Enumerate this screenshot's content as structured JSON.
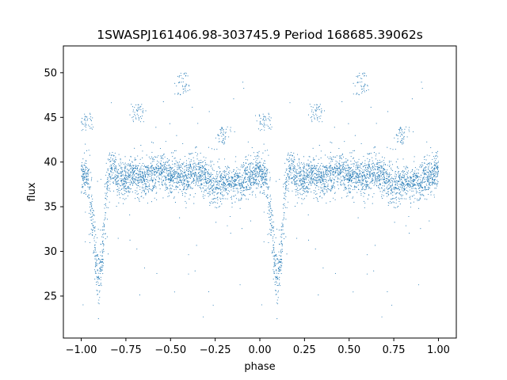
{
  "chart_data": {
    "type": "scatter",
    "title": "1SWASPJ161406.98-303745.9 Period 168685.39062s",
    "xlabel": "phase",
    "ylabel": "flux",
    "xlim": [
      -1.1,
      1.1
    ],
    "ylim": [
      20.3,
      53.0
    ],
    "xticks": [
      -1.0,
      -0.75,
      -0.5,
      -0.25,
      0.0,
      0.25,
      0.5,
      0.75,
      1.0
    ],
    "xtick_labels": [
      "−1.00",
      "−0.75",
      "−0.50",
      "−0.25",
      "0.00",
      "0.25",
      "0.50",
      "0.75",
      "1.00"
    ],
    "yticks": [
      25,
      30,
      35,
      40,
      45,
      50
    ],
    "ytick_labels": [
      "25",
      "30",
      "35",
      "40",
      "45",
      "50"
    ],
    "grid": false,
    "point_color": "#1f77b4",
    "series": [
      {
        "phase": [
          -0.99,
          -0.975,
          -0.96,
          -0.945,
          -0.93,
          -0.915,
          -0.9,
          -0.885,
          -0.87,
          -0.855,
          -0.84,
          -0.825,
          -0.81,
          -0.8,
          -0.78,
          -0.75,
          -0.72,
          -0.7,
          -0.68,
          -0.65,
          -0.6,
          -0.55,
          -0.5,
          -0.45,
          -0.4,
          -0.35,
          -0.3,
          -0.25,
          -0.2,
          -0.15,
          -0.1,
          -0.05,
          -0.01
        ],
        "flux": [
          38.5,
          38.8,
          37.5,
          35.0,
          32.0,
          28.0,
          26.5,
          28.5,
          33.5,
          37.0,
          39.0,
          39.5,
          39.0,
          38.0,
          38.5,
          37.8,
          38.3,
          38.6,
          38.2,
          38.0,
          38.8,
          39.0,
          38.6,
          38.4,
          38.2,
          39.0,
          38.0,
          37.5,
          37.8,
          37.5,
          38.0,
          38.2,
          38.8
        ]
      }
    ],
    "features": [
      {
        "phase": -0.68,
        "flux_range": [
          44.5,
          46.5
        ]
      },
      {
        "phase": -0.43,
        "flux_range": [
          47.5,
          50.0
        ]
      },
      {
        "phase": -0.21,
        "flux_range": [
          42.0,
          44.0
        ]
      },
      {
        "phase": -0.97,
        "flux_range": [
          43.5,
          45.5
        ]
      }
    ]
  }
}
